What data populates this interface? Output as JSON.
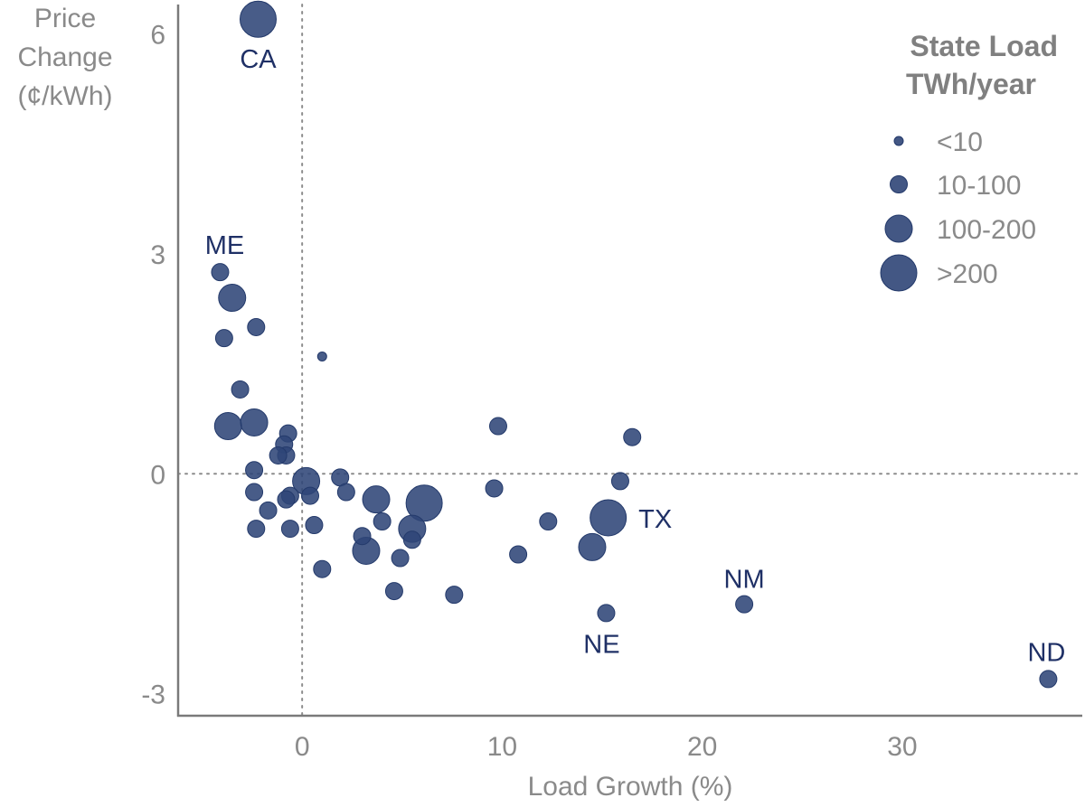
{
  "chart_data": {
    "type": "scatter",
    "xlabel": "Load Growth (%)",
    "ylabel_lines": [
      "Price",
      "Change",
      "(¢/kWh)"
    ],
    "xlim": [
      -6.2,
      39
    ],
    "ylim": [
      -3.3,
      6.4
    ],
    "x_ticks": [
      {
        "value": 0,
        "label": "0"
      },
      {
        "value": 10,
        "label": "10"
      },
      {
        "value": 20,
        "label": "20"
      },
      {
        "value": 30,
        "label": "30"
      }
    ],
    "y_ticks": [
      {
        "value": -3,
        "label": "-3"
      },
      {
        "value": 0,
        "label": "0"
      },
      {
        "value": 3,
        "label": "3"
      },
      {
        "value": 6,
        "label": "6"
      }
    ],
    "reference_lines": {
      "x": 0,
      "y": 0,
      "style": "dotted"
    },
    "marker_color": "#2f4577",
    "label_color": "#1f3066",
    "legend": {
      "title_lines": [
        "State Load",
        "TWh/year"
      ],
      "placement": "top-right",
      "entries": [
        {
          "label": "<10",
          "size": "xs"
        },
        {
          "label": "10-100",
          "size": "s"
        },
        {
          "label": "100-200",
          "size": "m"
        },
        {
          "label": ">200",
          "size": "l"
        }
      ]
    },
    "size_classes": [
      "xs",
      "s",
      "m",
      "l"
    ],
    "points": [
      {
        "x": -2.2,
        "y": 6.2,
        "size": "l",
        "label": "CA",
        "label_dx": 0,
        "label_dy": 54
      },
      {
        "x": -4.1,
        "y": 2.75,
        "size": "s",
        "label": "ME",
        "label_dx": 5,
        "label_dy": -20
      },
      {
        "x": -3.5,
        "y": 2.4,
        "size": "m"
      },
      {
        "x": -2.3,
        "y": 2.0,
        "size": "s"
      },
      {
        "x": -3.9,
        "y": 1.85,
        "size": "s"
      },
      {
        "x": 1.0,
        "y": 1.6,
        "size": "xs"
      },
      {
        "x": -3.1,
        "y": 1.15,
        "size": "s"
      },
      {
        "x": -3.7,
        "y": 0.65,
        "size": "m"
      },
      {
        "x": -2.4,
        "y": 0.7,
        "size": "m"
      },
      {
        "x": -0.7,
        "y": 0.55,
        "size": "s"
      },
      {
        "x": -0.9,
        "y": 0.4,
        "size": "s"
      },
      {
        "x": -0.8,
        "y": 0.25,
        "size": "s"
      },
      {
        "x": -1.2,
        "y": 0.25,
        "size": "s"
      },
      {
        "x": -2.4,
        "y": 0.05,
        "size": "s"
      },
      {
        "x": -2.4,
        "y": -0.25,
        "size": "s"
      },
      {
        "x": 0.2,
        "y": -0.1,
        "size": "m"
      },
      {
        "x": 0.4,
        "y": -0.3,
        "size": "s"
      },
      {
        "x": 1.9,
        "y": -0.05,
        "size": "s"
      },
      {
        "x": 2.2,
        "y": -0.25,
        "size": "s"
      },
      {
        "x": -0.6,
        "y": -0.3,
        "size": "s"
      },
      {
        "x": -0.8,
        "y": -0.35,
        "size": "s"
      },
      {
        "x": -1.7,
        "y": -0.5,
        "size": "s"
      },
      {
        "x": -2.3,
        "y": -0.75,
        "size": "s"
      },
      {
        "x": -0.6,
        "y": -0.75,
        "size": "s"
      },
      {
        "x": 0.6,
        "y": -0.7,
        "size": "s"
      },
      {
        "x": 3.7,
        "y": -0.35,
        "size": "m"
      },
      {
        "x": 6.1,
        "y": -0.4,
        "size": "l"
      },
      {
        "x": 4.0,
        "y": -0.65,
        "size": "s"
      },
      {
        "x": 5.5,
        "y": -0.75,
        "size": "m"
      },
      {
        "x": 3.0,
        "y": -0.85,
        "size": "s"
      },
      {
        "x": 5.5,
        "y": -0.9,
        "size": "s"
      },
      {
        "x": 3.2,
        "y": -1.05,
        "size": "m"
      },
      {
        "x": 4.9,
        "y": -1.15,
        "size": "s"
      },
      {
        "x": 1.0,
        "y": -1.3,
        "size": "s"
      },
      {
        "x": 4.6,
        "y": -1.6,
        "size": "s"
      },
      {
        "x": 7.6,
        "y": -1.65,
        "size": "s"
      },
      {
        "x": 9.6,
        "y": -0.2,
        "size": "s"
      },
      {
        "x": 9.8,
        "y": 0.65,
        "size": "s"
      },
      {
        "x": 10.8,
        "y": -1.1,
        "size": "s"
      },
      {
        "x": 12.3,
        "y": -0.65,
        "size": "s"
      },
      {
        "x": 14.5,
        "y": -1.0,
        "size": "m"
      },
      {
        "x": 15.3,
        "y": -0.6,
        "size": "l",
        "label": "TX",
        "label_dx": 52,
        "label_dy": 11
      },
      {
        "x": 15.9,
        "y": -0.1,
        "size": "s"
      },
      {
        "x": 16.5,
        "y": 0.5,
        "size": "s"
      },
      {
        "x": 15.2,
        "y": -1.9,
        "size": "s",
        "label": "NE",
        "label_dx": -5,
        "label_dy": 44
      },
      {
        "x": 22.1,
        "y": -1.78,
        "size": "s",
        "label": "NM",
        "label_dx": 0,
        "label_dy": -18
      },
      {
        "x": 37.3,
        "y": -2.8,
        "size": "s",
        "label": "ND",
        "label_dx": -2,
        "label_dy": -20
      }
    ]
  }
}
